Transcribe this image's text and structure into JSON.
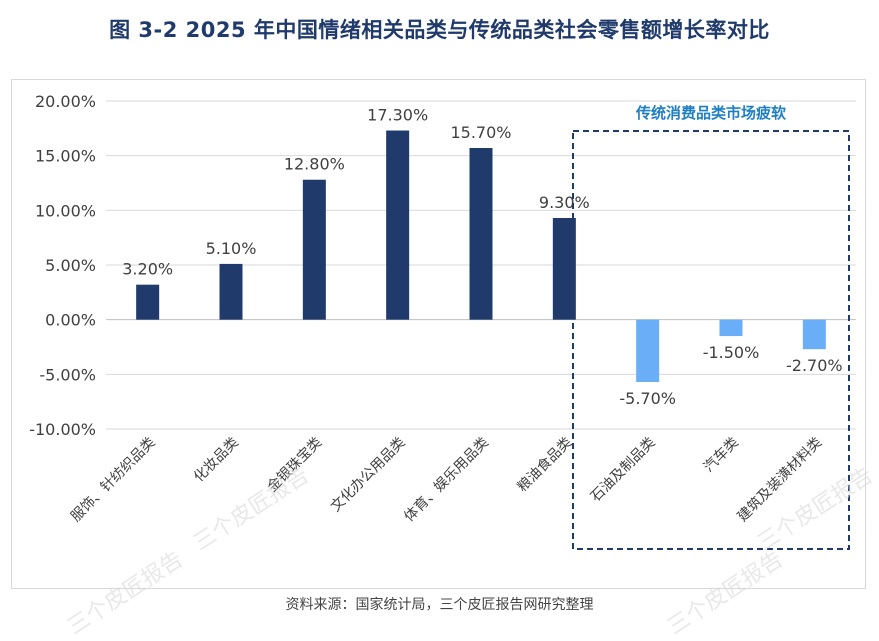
{
  "title": "图 3-2 2025 年中国情绪相关品类与传统品类社会零售额增长率对比",
  "source": "资料来源：国家统计局，三个皮匠报告网研究整理",
  "watermark": "三个皮匠报告",
  "colors": {
    "title": "#1f3a6b",
    "emotional_bar": "#1f3a6b",
    "traditional_bar": "#6aaef7",
    "highlight_box": "#1f3a6b",
    "highlight_label": "#1f7fc4",
    "grid": "#d9d9d9"
  },
  "chart_data": {
    "type": "bar",
    "title": "图 3-2 2025 年中国情绪相关品类与传统品类社会零售额增长率对比",
    "xlabel": "",
    "ylabel": "",
    "ylim": [
      -10,
      20
    ],
    "yticks": [
      20,
      15,
      10,
      5,
      0,
      -5,
      -10
    ],
    "ytick_labels": [
      "20.00%",
      "15.00%",
      "10.00%",
      "5.00%",
      "0.00%",
      "-5.00%",
      "-10.00%"
    ],
    "grid": true,
    "categories": [
      "服饰、针纺织品类",
      "化妆品类",
      "金银珠宝类",
      "文化办公用品类",
      "体育、娱乐用品类",
      "粮油食品类",
      "石油及制品类",
      "汽车类",
      "建筑及装潢材料类"
    ],
    "values": [
      3.2,
      5.1,
      12.8,
      17.3,
      15.7,
      9.3,
      -5.7,
      -1.5,
      -2.7
    ],
    "data_labels": [
      "3.20%",
      "5.10%",
      "12.80%",
      "17.30%",
      "15.70%",
      "9.30%",
      "-5.70%",
      "-1.50%",
      "-2.70%"
    ],
    "groups": [
      "emotional",
      "emotional",
      "emotional",
      "emotional",
      "emotional",
      "emotional",
      "traditional",
      "traditional",
      "traditional"
    ],
    "annotation": "传统消费品类市场疲软"
  }
}
